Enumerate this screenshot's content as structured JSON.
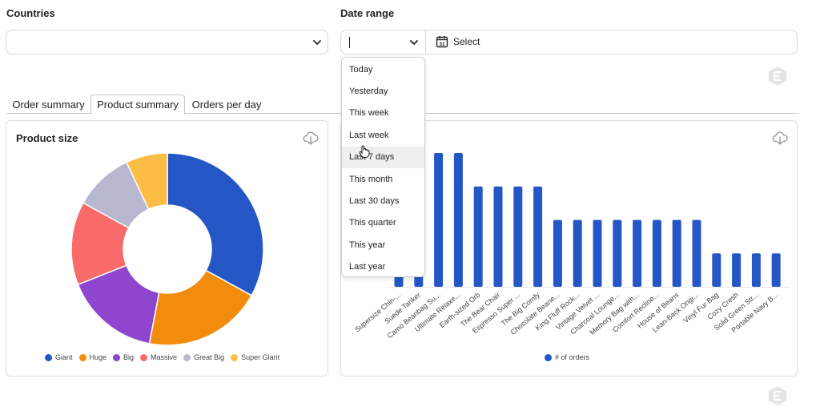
{
  "filters": {
    "countries_label": "Countries",
    "countries_value": "",
    "date_range_label": "Date range",
    "date_range_value": "",
    "select_label": "Select",
    "calendar_day": "31"
  },
  "tabs": [
    {
      "label": "Order summary",
      "active": false
    },
    {
      "label": "Product summary",
      "active": true
    },
    {
      "label": "Orders per day",
      "active": false
    }
  ],
  "date_options": [
    "Today",
    "Yesterday",
    "This week",
    "Last week",
    "Last 7 days",
    "This month",
    "Last 30 days",
    "This quarter",
    "This year",
    "Last year"
  ],
  "hovered_option": "Last 7 days",
  "product_size_card": {
    "title": "Product size",
    "chart_data": {
      "type": "pie",
      "title": "Product size",
      "donut": true,
      "labels": [
        "Giant",
        "Huge",
        "Big",
        "Massive",
        "Great Big",
        "Super Giant"
      ],
      "values": [
        33,
        20,
        16,
        14,
        10,
        7
      ],
      "colors": [
        "#2457c5",
        "#f28c0c",
        "#8e46cf",
        "#f96b6b",
        "#b7b8cf",
        "#fdbd45"
      ]
    }
  },
  "orders_card": {
    "chart_data": {
      "type": "bar",
      "categories": [
        "Supersize Chin-...",
        "Suede Tanker",
        "Camo Beanbag Su...",
        "Ultimate Relaxe...",
        "Earth-sized Orb",
        "The Bear Chair",
        "Espresso Super ...",
        "The Big Comfy",
        "Chocolate Beane...",
        "King Fluff Rock...",
        "Vintage Velvet ...",
        "Charcoal Lounge...",
        "Memory Bag with...",
        "Comfort Recline...",
        "House of Beans",
        "Lean-Back Origi...",
        "Vinyl Fur Bag",
        "Cozy Cresh",
        "Solid Green Str...",
        "Portable Navy B..."
      ],
      "series": [
        {
          "name": "# of orders",
          "values": [
            5,
            5,
            5,
            5,
            4,
            4,
            4,
            4,
            3,
            3,
            3,
            3,
            3,
            3,
            3,
            3,
            2,
            2,
            2,
            2
          ]
        }
      ],
      "visible_heights": [
        null,
        null,
        8,
        8,
        6,
        6,
        6,
        6,
        4,
        4,
        4,
        4,
        4,
        4,
        4,
        4,
        2,
        2,
        2,
        2
      ],
      "ylim": [
        0,
        8
      ],
      "color": "#2457c5",
      "legend": "# of orders"
    }
  }
}
